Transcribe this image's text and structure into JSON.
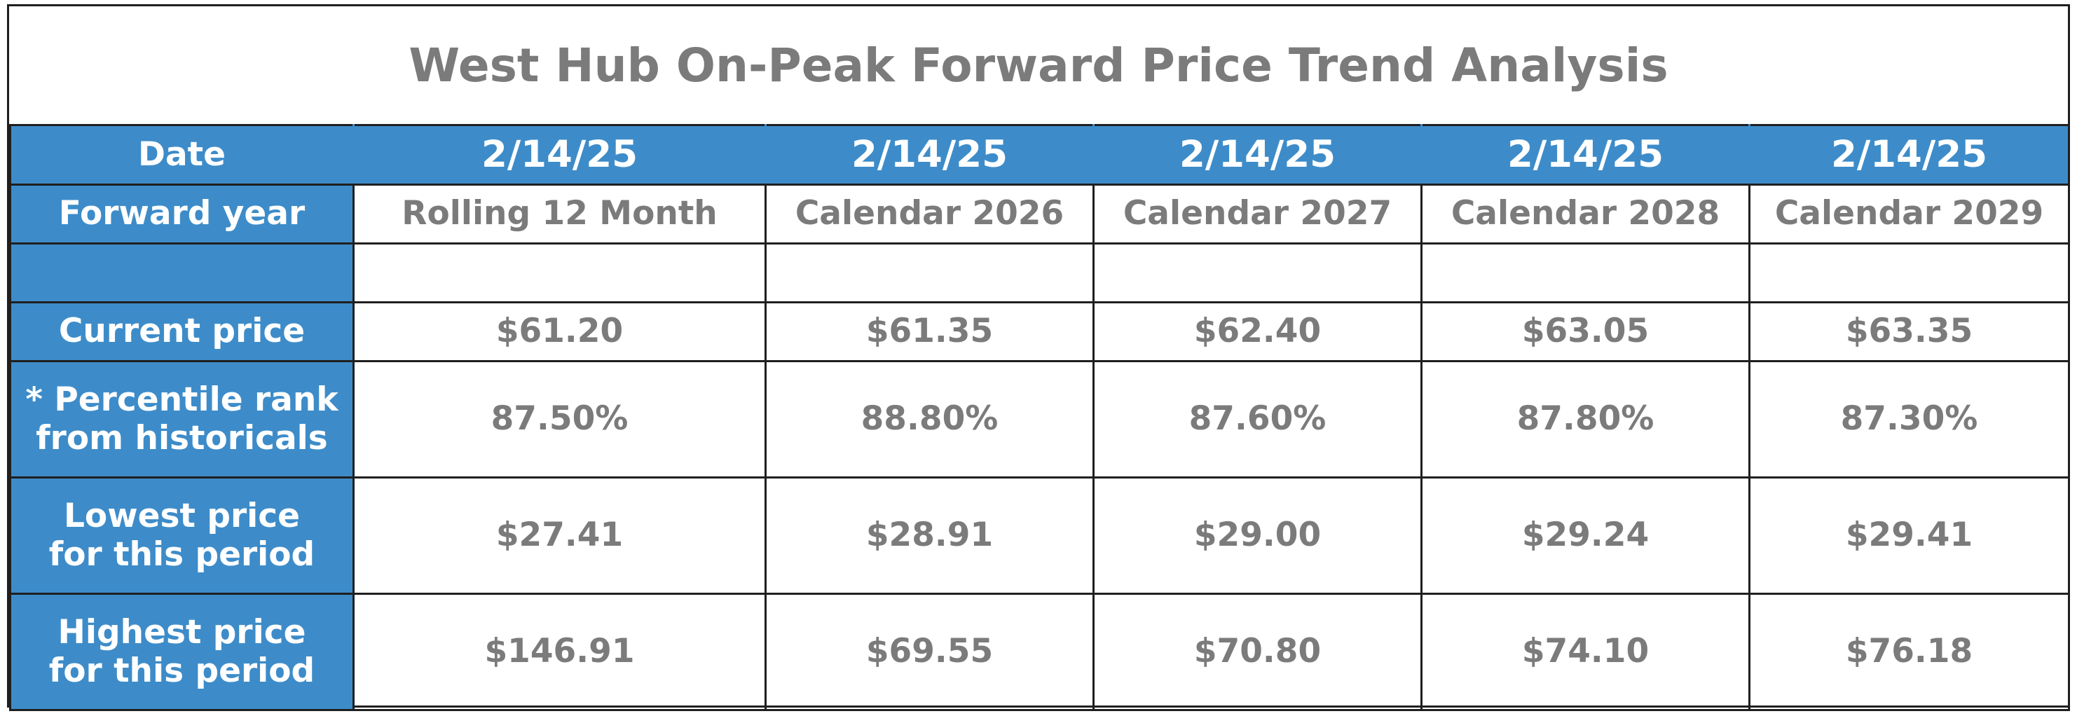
{
  "title": "West Hub On-Peak Forward Price Trend Analysis",
  "row_labels": {
    "date": "Date",
    "forward_year": "Forward year",
    "blank": "",
    "current_price": "Current price",
    "percentile_line1": "* Percentile rank",
    "percentile_line2": "from historicals",
    "lowest_line1": "Lowest price",
    "lowest_line2": "for this period",
    "highest_line1": "Highest price",
    "highest_line2": "for this period"
  },
  "columns": [
    {
      "date": "2/14/25",
      "forward_year": "Rolling 12 Month",
      "current_price": "$61.20",
      "percentile": "87.50%",
      "lowest": "$27.41",
      "highest": "$146.91"
    },
    {
      "date": "2/14/25",
      "forward_year": "Calendar 2026",
      "current_price": "$61.35",
      "percentile": "88.80%",
      "lowest": "$28.91",
      "highest": "$69.55"
    },
    {
      "date": "2/14/25",
      "forward_year": "Calendar 2027",
      "current_price": "$62.40",
      "percentile": "87.60%",
      "lowest": "$29.00",
      "highest": "$70.80"
    },
    {
      "date": "2/14/25",
      "forward_year": "Calendar 2028",
      "current_price": "$63.05",
      "percentile": "87.80%",
      "lowest": "$29.24",
      "highest": "$74.10"
    },
    {
      "date": "2/14/25",
      "forward_year": "Calendar 2029",
      "current_price": "$63.35",
      "percentile": "87.30%",
      "lowest": "$29.41",
      "highest": "$76.18"
    }
  ],
  "colors": {
    "header_blue": "#3d8cc9",
    "value_gray": "#7b7b7b",
    "border": "#1f1f1f"
  }
}
